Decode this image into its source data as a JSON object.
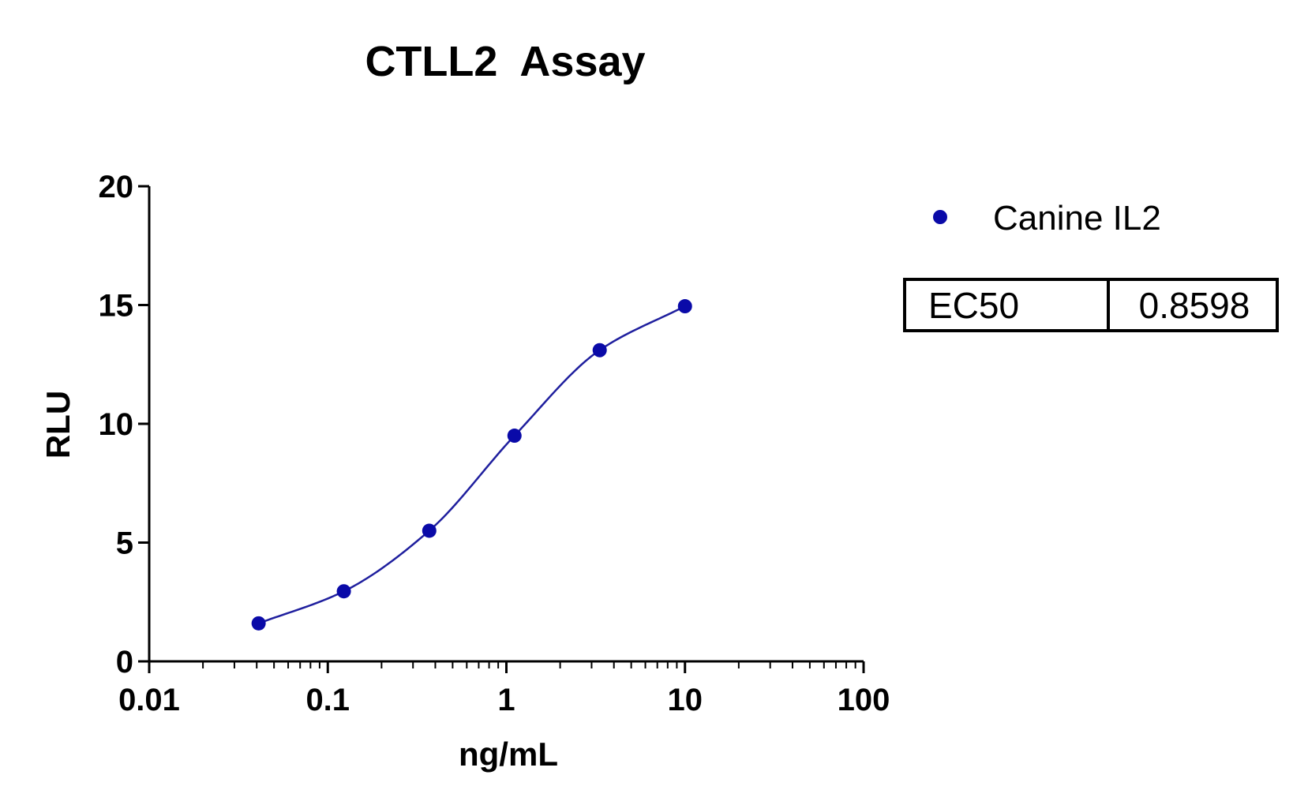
{
  "chart_data": {
    "type": "scatter",
    "title": "CTLL2  Assay",
    "xlabel": "ng/mL",
    "ylabel": "RLU",
    "x_scale": "log",
    "xlim": [
      0.01,
      100
    ],
    "ylim": [
      0,
      20
    ],
    "x_tick_labels": [
      "0.01",
      "0.1",
      "1",
      "10",
      "100"
    ],
    "x_tick_values": [
      0.01,
      0.1,
      1,
      10,
      100
    ],
    "y_tick_labels": [
      "0",
      "5",
      "10",
      "15",
      "20"
    ],
    "y_tick_values": [
      0,
      5,
      10,
      15,
      20
    ],
    "series": [
      {
        "name": "Canine IL2",
        "color": "#0a0aa8",
        "curve_color": "#1f1f9e",
        "x": [
          0.041,
          0.123,
          0.37,
          1.11,
          3.33,
          10
        ],
        "y": [
          1.6,
          2.95,
          5.5,
          9.5,
          13.1,
          14.95
        ],
        "fit": "4PL"
      }
    ],
    "legend": {
      "position": "top-right"
    },
    "table": {
      "label": "EC50",
      "value": "0.8598"
    },
    "grid": false
  }
}
